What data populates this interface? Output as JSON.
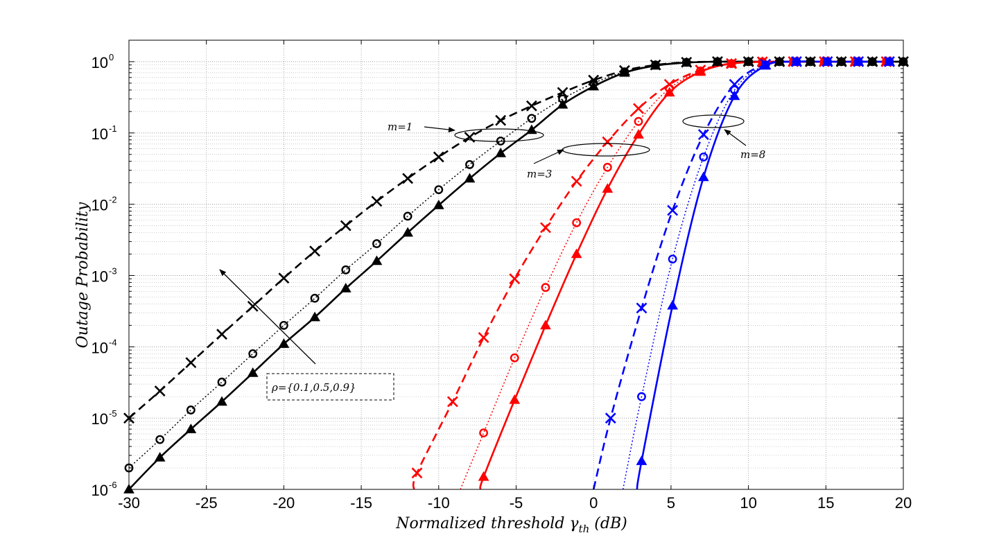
{
  "chart_data": {
    "type": "line",
    "xlabel": "Normalized threshold γth (dB)",
    "xlabel_main": "Normalized threshold ",
    "xlabel_symbol": "γ",
    "xlabel_sub": "th",
    "xlabel_unit": " (dB)",
    "ylabel": "Outage Probability",
    "xlim": [
      -30,
      20
    ],
    "ylim": [
      1e-06,
      2
    ],
    "yscale": "log",
    "grid": true,
    "x_ticks": [
      "-30",
      "-25",
      "-20",
      "-15",
      "-10",
      "-5",
      "0",
      "5",
      "10",
      "15",
      "20"
    ],
    "x_tick_values": [
      -30,
      -25,
      -20,
      -15,
      -10,
      -5,
      0,
      5,
      10,
      15,
      20
    ],
    "y_tick_base": "10",
    "y_tick_exponents": [
      "0",
      "-1",
      "-2",
      "-3",
      "-4",
      "-5",
      "-6"
    ],
    "annotations": {
      "m1": "m=1",
      "m3": "m=3",
      "m8": "m=8",
      "rho": "ρ={0.1,0.5,0.9}"
    },
    "series": [
      {
        "name": "m=1, ρ=0.1",
        "color": "#000000",
        "dash": "dashed",
        "marker": "x",
        "marker_x": [
          -30,
          -28,
          -26,
          -24,
          -22,
          -20,
          -18,
          -16,
          -14,
          -12,
          -10,
          -8,
          -6,
          -4,
          -2,
          0,
          2,
          4,
          6,
          8,
          10,
          12,
          14,
          16,
          18,
          20
        ],
        "marker_y": [
          1e-05,
          2.4e-05,
          6e-05,
          0.00015,
          0.00037,
          0.00092,
          0.0022,
          0.005,
          0.011,
          0.023,
          0.046,
          0.087,
          0.15,
          0.24,
          0.37,
          0.55,
          0.75,
          0.9,
          0.98,
          1,
          1,
          1,
          1,
          1,
          1,
          1
        ]
      },
      {
        "name": "m=1, ρ=0.5",
        "color": "#000000",
        "dash": "dotted",
        "marker": "o",
        "marker_x": [
          -30,
          -28,
          -26,
          -24,
          -22,
          -20,
          -18,
          -16,
          -14,
          -12,
          -10,
          -8,
          -6,
          -4,
          -2,
          0,
          2,
          4,
          6,
          8,
          10,
          12,
          14,
          16,
          18,
          20
        ],
        "marker_y": [
          2e-06,
          5e-06,
          1.3e-05,
          3.2e-05,
          8e-05,
          0.0002,
          0.00048,
          0.0012,
          0.0028,
          0.0068,
          0.016,
          0.036,
          0.077,
          0.16,
          0.3,
          0.5,
          0.72,
          0.9,
          0.98,
          1,
          1,
          1,
          1,
          1,
          1,
          1
        ]
      },
      {
        "name": "m=1, ρ=0.9",
        "color": "#000000",
        "dash": "solid",
        "marker": "triangle",
        "marker_x": [
          -30,
          -28,
          -26,
          -24,
          -22,
          -20,
          -18,
          -16,
          -14,
          -12,
          -10,
          -8,
          -6,
          -4,
          -2,
          0,
          2,
          4,
          6,
          8,
          10,
          12,
          14,
          16,
          18,
          20
        ],
        "marker_y": [
          1e-06,
          2.8e-06,
          7e-06,
          1.7e-05,
          4.3e-05,
          0.00011,
          0.00026,
          0.00066,
          0.0016,
          0.004,
          0.0097,
          0.023,
          0.052,
          0.11,
          0.25,
          0.45,
          0.7,
          0.88,
          0.97,
          1,
          1,
          1,
          1,
          1,
          1,
          1
        ]
      },
      {
        "name": "m=3, ρ=0.1",
        "color": "#ff0000",
        "dash": "dashed",
        "marker": "x",
        "marker_x": [
          -11.4,
          -9.1,
          -7.1,
          -5.1,
          -3.1,
          -1.1,
          0.9,
          2.9,
          4.9,
          6.9,
          8.9,
          10.9,
          12.9,
          14.9,
          16.9,
          18.9
        ],
        "marker_y": [
          1.7e-06,
          1.7e-05,
          0.000135,
          0.0009,
          0.0047,
          0.021,
          0.075,
          0.22,
          0.48,
          0.76,
          0.94,
          0.995,
          1,
          1,
          1,
          1
        ]
      },
      {
        "name": "m=3, ρ=0.5",
        "color": "#ff0000",
        "dash": "dotted",
        "marker": "o",
        "marker_x": [
          -7.1,
          -5.1,
          -3.1,
          -1.1,
          0.9,
          2.9,
          4.9,
          6.9,
          8.9,
          10.9,
          12.9,
          14.9,
          16.9,
          18.9
        ],
        "marker_y": [
          6.2e-06,
          7e-05,
          0.00068,
          0.0055,
          0.033,
          0.145,
          0.42,
          0.74,
          0.94,
          0.995,
          1,
          1,
          1,
          1
        ]
      },
      {
        "name": "m=3, ρ=0.9",
        "color": "#ff0000",
        "dash": "solid",
        "marker": "triangle",
        "marker_x": [
          -7.1,
          -5.1,
          -3.1,
          -1.1,
          0.9,
          2.9,
          4.9,
          6.9,
          8.9,
          10.9,
          12.9,
          14.9,
          16.9,
          18.9
        ],
        "marker_y": [
          1.5e-06,
          1.8e-05,
          0.0002,
          0.002,
          0.0165,
          0.095,
          0.37,
          0.72,
          0.94,
          0.995,
          1,
          1,
          1,
          1
        ]
      },
      {
        "name": "m=8, ρ=0.1",
        "color": "#0000ff",
        "dash": "dashed",
        "marker": "x",
        "marker_x": [
          1.1,
          3.1,
          5.1,
          7.1,
          9.1,
          11.1,
          13.1,
          15.1,
          17.1,
          19.1
        ],
        "marker_y": [
          1e-05,
          0.00035,
          0.0082,
          0.095,
          0.48,
          0.92,
          1,
          1,
          1,
          1
        ]
      },
      {
        "name": "m=8, ρ=0.5",
        "color": "#0000ff",
        "dash": "dotted",
        "marker": "o",
        "marker_x": [
          3.1,
          5.1,
          7.1,
          9.1,
          11.1,
          13.1,
          15.1,
          17.1,
          19.1
        ],
        "marker_y": [
          2e-05,
          0.0017,
          0.046,
          0.4,
          0.9,
          1,
          1,
          1,
          1
        ]
      },
      {
        "name": "m=8, ρ=0.9",
        "color": "#0000ff",
        "dash": "solid",
        "marker": "triangle",
        "marker_x": [
          3.1,
          5.1,
          7.1,
          9.1,
          11.1,
          13.1,
          15.1,
          17.1,
          19.1
        ],
        "marker_y": [
          2.5e-06,
          0.00038,
          0.024,
          0.33,
          0.88,
          1,
          1,
          1,
          1
        ]
      }
    ],
    "curve_starts": [
      {
        "series": 3,
        "x": -11.6,
        "y": 1e-06
      },
      {
        "series": 4,
        "x": -8.6,
        "y": 1e-06
      },
      {
        "series": 5,
        "x": -7.3,
        "y": 1e-06
      },
      {
        "series": 6,
        "x": 0.0,
        "y": 1e-06
      },
      {
        "series": 7,
        "x": 1.9,
        "y": 1e-06
      },
      {
        "series": 8,
        "x": 2.8,
        "y": 1e-06
      }
    ]
  }
}
